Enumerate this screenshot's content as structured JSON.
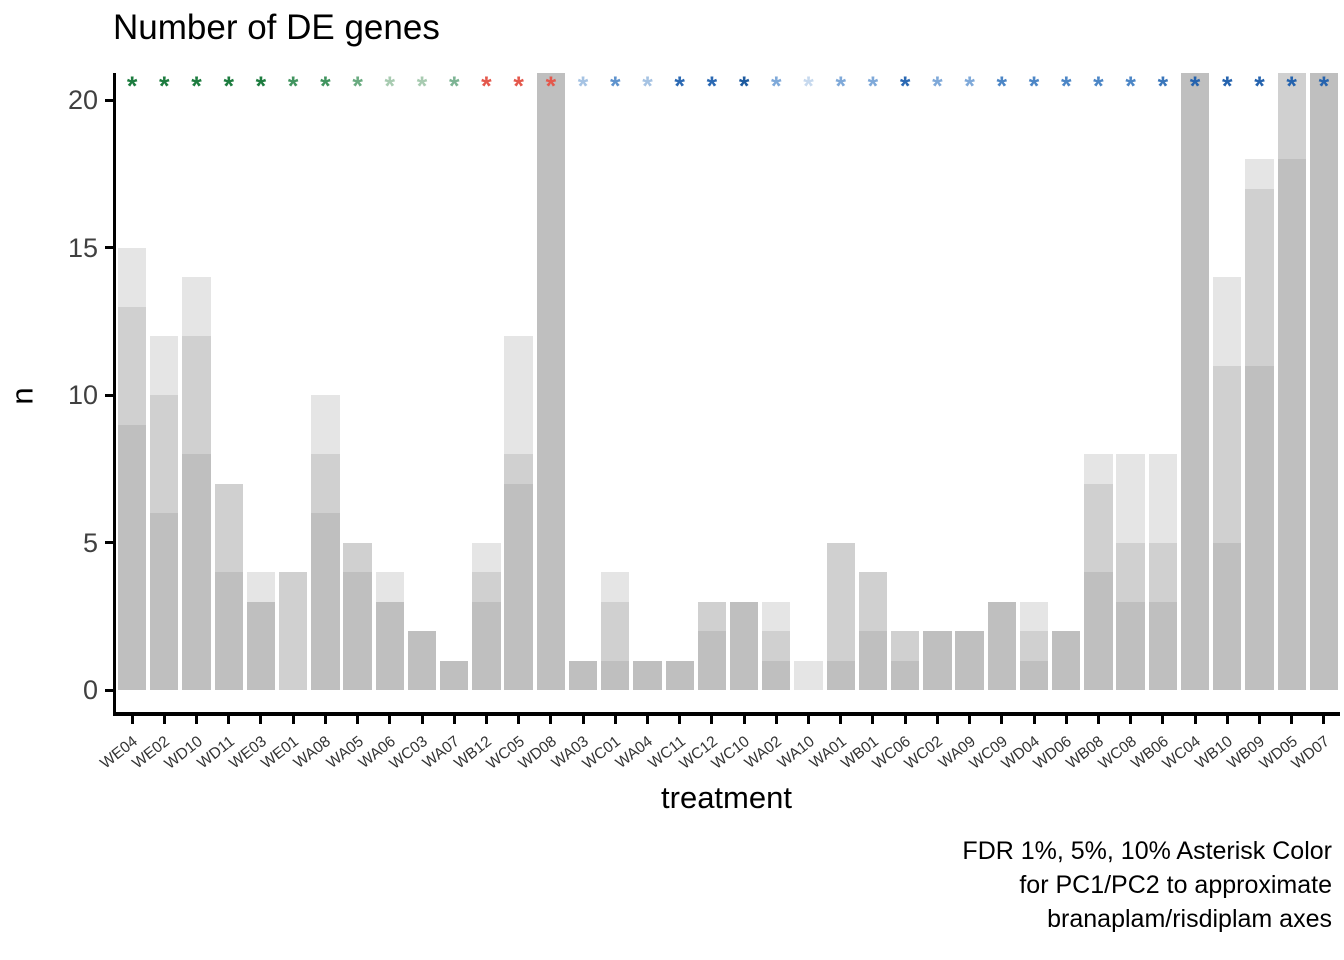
{
  "chart_data": {
    "type": "bar",
    "title": "Number of DE genes",
    "xlabel": "treatment",
    "ylabel": "n",
    "yticks": [
      0,
      5,
      10,
      15,
      20
    ],
    "ylim": [
      0,
      20.9
    ],
    "grid": false,
    "legend": "none",
    "caption_lines": [
      "FDR 1%, 5%, 10% Asterisk Color",
      "for PC1/PC2 to approximate",
      "branaplam/risdiplam axes"
    ],
    "series": [
      {
        "name": "FDR 10%",
        "color": "#e5e5e5"
      },
      {
        "name": "FDR 5%",
        "color": "#d0d0d0"
      },
      {
        "name": "FDR 1%",
        "color": "#bfbfbf"
      }
    ],
    "bars": [
      {
        "treatment": "WE04",
        "fdr10": 15,
        "fdr5": 13,
        "fdr1": 9,
        "asterisk_color": "#1d7c3f"
      },
      {
        "treatment": "WE02",
        "fdr10": 12,
        "fdr5": 10,
        "fdr1": 6,
        "asterisk_color": "#1d7c3f"
      },
      {
        "treatment": "WD10",
        "fdr10": 14,
        "fdr5": 12,
        "fdr1": 8,
        "asterisk_color": "#1d7c3f"
      },
      {
        "treatment": "WD11",
        "fdr10": 7,
        "fdr5": 7,
        "fdr1": 4,
        "asterisk_color": "#1d7c3f"
      },
      {
        "treatment": "WE03",
        "fdr10": 4,
        "fdr5": 3,
        "fdr1": 3,
        "asterisk_color": "#1d7c3f"
      },
      {
        "treatment": "WE01",
        "fdr10": 4,
        "fdr5": 4,
        "fdr1": 0,
        "asterisk_color": "#41945f"
      },
      {
        "treatment": "WA08",
        "fdr10": 10,
        "fdr5": 8,
        "fdr1": 6,
        "asterisk_color": "#41945f"
      },
      {
        "treatment": "WA05",
        "fdr10": 5,
        "fdr5": 5,
        "fdr1": 4,
        "asterisk_color": "#6aab80"
      },
      {
        "treatment": "WA06",
        "fdr10": 4,
        "fdr5": 3,
        "fdr1": 3,
        "asterisk_color": "#a8cbb1"
      },
      {
        "treatment": "WC03",
        "fdr10": 2,
        "fdr5": 2,
        "fdr1": 2,
        "asterisk_color": "#a8cbb1"
      },
      {
        "treatment": "WA07",
        "fdr10": 1,
        "fdr5": 1,
        "fdr1": 1,
        "asterisk_color": "#7db494"
      },
      {
        "treatment": "WB12",
        "fdr10": 5,
        "fdr5": 4,
        "fdr1": 3,
        "asterisk_color": "#e4584c"
      },
      {
        "treatment": "WC05",
        "fdr10": 12,
        "fdr5": 8,
        "fdr1": 7,
        "asterisk_color": "#e4584c"
      },
      {
        "treatment": "WD08",
        "fdr10": 21,
        "fdr5": 21,
        "fdr1": 21,
        "asterisk_color": "#e4584c"
      },
      {
        "treatment": "WA03",
        "fdr10": 1,
        "fdr5": 1,
        "fdr1": 1,
        "asterisk_color": "#a6c3e3"
      },
      {
        "treatment": "WC01",
        "fdr10": 4,
        "fdr5": 3,
        "fdr1": 1,
        "asterisk_color": "#5f93cd"
      },
      {
        "treatment": "WA04",
        "fdr10": 1,
        "fdr5": 1,
        "fdr1": 1,
        "asterisk_color": "#a6c3e3"
      },
      {
        "treatment": "WC11",
        "fdr10": 1,
        "fdr5": 1,
        "fdr1": 1,
        "asterisk_color": "#2b69b3"
      },
      {
        "treatment": "WC12",
        "fdr10": 3,
        "fdr5": 3,
        "fdr1": 2,
        "asterisk_color": "#2b69b3"
      },
      {
        "treatment": "WC10",
        "fdr10": 3,
        "fdr5": 3,
        "fdr1": 3,
        "asterisk_color": "#1d5a9f"
      },
      {
        "treatment": "WA02",
        "fdr10": 3,
        "fdr5": 2,
        "fdr1": 1,
        "asterisk_color": "#7fa9d9"
      },
      {
        "treatment": "WA10",
        "fdr10": 1,
        "fdr5": 0,
        "fdr1": 0,
        "asterisk_color": "#c7d9ee"
      },
      {
        "treatment": "WA01",
        "fdr10": 5,
        "fdr5": 5,
        "fdr1": 1,
        "asterisk_color": "#7fa9d9"
      },
      {
        "treatment": "WB01",
        "fdr10": 4,
        "fdr5": 4,
        "fdr1": 2,
        "asterisk_color": "#7fa9d9"
      },
      {
        "treatment": "WC06",
        "fdr10": 2,
        "fdr5": 2,
        "fdr1": 1,
        "asterisk_color": "#2b69b3"
      },
      {
        "treatment": "WC02",
        "fdr10": 2,
        "fdr5": 2,
        "fdr1": 2,
        "asterisk_color": "#7fa9d9"
      },
      {
        "treatment": "WA09",
        "fdr10": 2,
        "fdr5": 2,
        "fdr1": 2,
        "asterisk_color": "#7fa9d9"
      },
      {
        "treatment": "WC09",
        "fdr10": 3,
        "fdr5": 3,
        "fdr1": 3,
        "asterisk_color": "#4c86c6"
      },
      {
        "treatment": "WD04",
        "fdr10": 3,
        "fdr5": 2,
        "fdr1": 1,
        "asterisk_color": "#4c86c6"
      },
      {
        "treatment": "WD06",
        "fdr10": 2,
        "fdr5": 2,
        "fdr1": 2,
        "asterisk_color": "#4c86c6"
      },
      {
        "treatment": "WB08",
        "fdr10": 8,
        "fdr5": 7,
        "fdr1": 4,
        "asterisk_color": "#4c86c6"
      },
      {
        "treatment": "WC08",
        "fdr10": 8,
        "fdr5": 5,
        "fdr1": 3,
        "asterisk_color": "#4c86c6"
      },
      {
        "treatment": "WB06",
        "fdr10": 8,
        "fdr5": 5,
        "fdr1": 3,
        "asterisk_color": "#3a76bb"
      },
      {
        "treatment": "WC04",
        "fdr10": 21,
        "fdr5": 21,
        "fdr1": 21,
        "asterisk_color": "#2563ae"
      },
      {
        "treatment": "WB10",
        "fdr10": 14,
        "fdr5": 11,
        "fdr1": 5,
        "asterisk_color": "#2563ae"
      },
      {
        "treatment": "WB09",
        "fdr10": 18,
        "fdr5": 17,
        "fdr1": 11,
        "asterisk_color": "#2563ae"
      },
      {
        "treatment": "WD05",
        "fdr10": 21,
        "fdr5": 21,
        "fdr1": 18,
        "asterisk_color": "#2563ae"
      },
      {
        "treatment": "WD07",
        "fdr10": 21,
        "fdr5": 21,
        "fdr1": 21,
        "asterisk_color": "#2563ae"
      }
    ]
  }
}
